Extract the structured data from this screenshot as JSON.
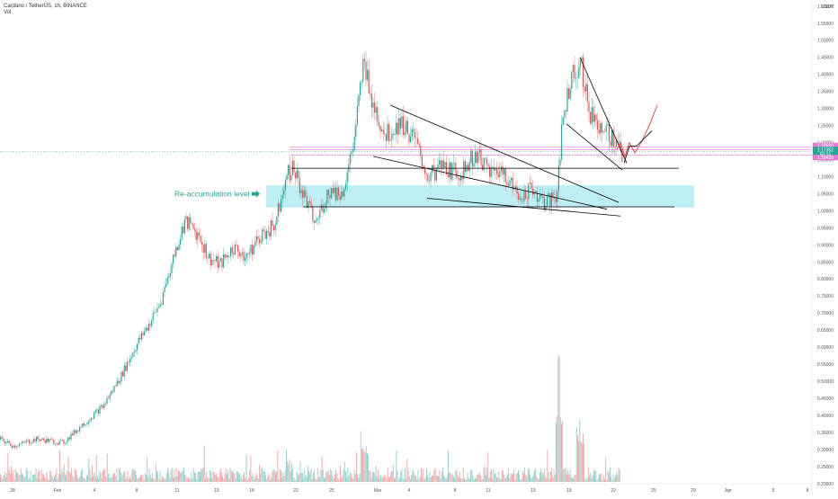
{
  "header": {
    "symbol_line": "Cardano / TetherUS, 1h, BINANCE",
    "volume_label": "Vol"
  },
  "colors": {
    "up": "#26a69a",
    "down": "#ef5350",
    "zone": "#b2ebf2",
    "pink_line": "#e57bd6",
    "trendline": "#000000",
    "projection": "#e53935",
    "current_tag": "#26a69a"
  },
  "chart_data": {
    "type": "candlestick",
    "title": "Cardano / TetherUS, 1h, BINANCE",
    "currency_label": "USDT",
    "ylim": [
      0.2,
      1.6
    ],
    "y_ticks": [
      "1.60000",
      "1.55000",
      "1.50000",
      "1.45000",
      "1.40000",
      "1.35000",
      "1.30000",
      "1.25000",
      "1.20000",
      "1.15000",
      "1.10000",
      "1.05000",
      "1.00000",
      "0.95000",
      "0.90000",
      "0.85000",
      "0.80000",
      "0.75000",
      "0.70000",
      "0.65000",
      "0.60000",
      "0.55000",
      "0.50000",
      "0.45000",
      "0.40000",
      "0.35000",
      "0.30000",
      "0.25000",
      "0.20000"
    ],
    "x_ticks": [
      "28",
      "Feb",
      "4",
      "8",
      "11",
      "15",
      "18",
      "22",
      "25",
      "Mar",
      "4",
      "8",
      "11",
      "15",
      "18",
      "22",
      "25",
      "29",
      "Apr",
      "5",
      "8"
    ],
    "price_path": [
      [
        0,
        0.33
      ],
      [
        14,
        0.31
      ],
      [
        40,
        0.33
      ],
      [
        70,
        0.32
      ],
      [
        90,
        0.37
      ],
      [
        115,
        0.43
      ],
      [
        135,
        0.52
      ],
      [
        150,
        0.6
      ],
      [
        168,
        0.68
      ],
      [
        178,
        0.73
      ],
      [
        192,
        0.86
      ],
      [
        205,
        0.97
      ],
      [
        220,
        0.93
      ],
      [
        232,
        0.86
      ],
      [
        244,
        0.84
      ],
      [
        258,
        0.89
      ],
      [
        275,
        0.87
      ],
      [
        290,
        0.93
      ],
      [
        305,
        0.96
      ],
      [
        316,
        1.09
      ],
      [
        325,
        1.13
      ],
      [
        335,
        1.06
      ],
      [
        350,
        0.96
      ],
      [
        365,
        1.06
      ],
      [
        380,
        1.05
      ],
      [
        393,
        1.2
      ],
      [
        404,
        1.44
      ],
      [
        415,
        1.31
      ],
      [
        428,
        1.22
      ],
      [
        445,
        1.26
      ],
      [
        460,
        1.21
      ],
      [
        475,
        1.1
      ],
      [
        490,
        1.13
      ],
      [
        510,
        1.11
      ],
      [
        530,
        1.17
      ],
      [
        545,
        1.11
      ],
      [
        560,
        1.12
      ],
      [
        575,
        1.04
      ],
      [
        590,
        1.07
      ],
      [
        605,
        1.02
      ],
      [
        618,
        1.04
      ],
      [
        625,
        1.26
      ],
      [
        635,
        1.4
      ],
      [
        645,
        1.44
      ],
      [
        655,
        1.29
      ],
      [
        665,
        1.26
      ],
      [
        675,
        1.23
      ],
      [
        685,
        1.19
      ],
      [
        692,
        1.17
      ]
    ],
    "current_price": "1.17352",
    "countdown": "50:15",
    "price_tags": [
      "1.18680",
      "1.17352",
      "1.16428"
    ],
    "pink_levels": [
      1.1868,
      1.1642,
      1.1797
    ],
    "volume_note": "volume histogram at bottom"
  },
  "annotations": {
    "zone_label": "Re-accumulation level",
    "zone_low": 1.01,
    "zone_high": 1.075,
    "support_line_upper": 1.125,
    "support_line_lower": 1.01
  }
}
